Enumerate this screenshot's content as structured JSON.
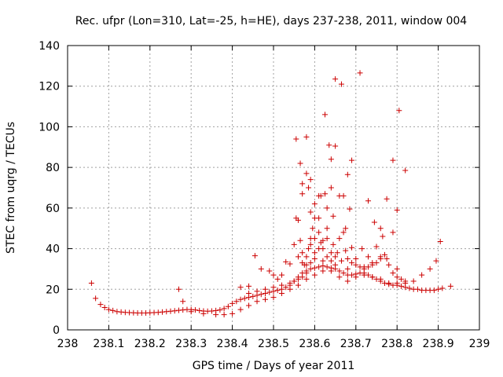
{
  "chart_data": {
    "type": "scatter",
    "title": "Rec. ufpr (Lon=310, Lat=-25, h=HE), days 237-238, 2011, window 004",
    "xlabel": "GPS time / Days of year 2011",
    "ylabel": "STEC from uqrg / TECUs",
    "xlim": [
      238,
      239
    ],
    "ylim": [
      0,
      140
    ],
    "xticks": [
      "238",
      "238.1",
      "238.2",
      "238.3",
      "238.4",
      "238.5",
      "238.6",
      "238.7",
      "238.8",
      "238.9",
      "239"
    ],
    "yticks": [
      "0",
      "20",
      "40",
      "60",
      "80",
      "100",
      "120",
      "140"
    ],
    "grid": true,
    "marker": "+",
    "color": "#cc0000",
    "series": [
      {
        "points": [
          [
            238.058,
            23
          ],
          [
            238.068,
            15.5
          ],
          [
            238.08,
            12.5
          ],
          [
            238.09,
            11
          ],
          [
            238.1,
            10
          ],
          [
            238.11,
            9.5
          ],
          [
            238.12,
            9
          ],
          [
            238.13,
            8.8
          ],
          [
            238.14,
            8.6
          ],
          [
            238.15,
            8.5
          ],
          [
            238.16,
            8.4
          ],
          [
            238.17,
            8.3
          ],
          [
            238.18,
            8.3
          ],
          [
            238.19,
            8.3
          ],
          [
            238.2,
            8.4
          ],
          [
            238.21,
            8.5
          ],
          [
            238.22,
            8.6
          ],
          [
            238.23,
            8.8
          ],
          [
            238.24,
            9
          ],
          [
            238.25,
            9.2
          ],
          [
            238.26,
            9.4
          ],
          [
            238.27,
            9.6
          ],
          [
            238.28,
            9.8
          ],
          [
            238.29,
            10
          ],
          [
            238.3,
            10
          ],
          [
            238.31,
            9.8
          ],
          [
            238.32,
            9.5
          ],
          [
            238.33,
            9.3
          ],
          [
            238.34,
            9.2
          ],
          [
            238.35,
            9.3
          ],
          [
            238.36,
            9.5
          ],
          [
            238.37,
            9.8
          ],
          [
            238.38,
            10.5
          ],
          [
            238.39,
            11.5
          ],
          [
            238.4,
            13
          ],
          [
            238.41,
            14
          ],
          [
            238.42,
            15
          ],
          [
            238.43,
            15.5
          ],
          [
            238.44,
            16
          ],
          [
            238.45,
            16.5
          ],
          [
            238.46,
            17
          ],
          [
            238.47,
            17.5
          ],
          [
            238.48,
            18
          ],
          [
            238.49,
            18.5
          ],
          [
            238.5,
            19
          ],
          [
            238.51,
            19.5
          ],
          [
            238.52,
            20
          ],
          [
            238.53,
            21
          ],
          [
            238.54,
            22
          ],
          [
            238.55,
            24
          ],
          [
            238.56,
            26
          ],
          [
            238.57,
            28
          ],
          [
            238.58,
            29
          ],
          [
            238.59,
            30
          ],
          [
            238.6,
            30.5
          ],
          [
            238.61,
            31
          ],
          [
            238.62,
            31.5
          ],
          [
            238.63,
            31
          ],
          [
            238.64,
            30.5
          ],
          [
            238.65,
            30
          ],
          [
            238.66,
            29
          ],
          [
            238.67,
            28
          ],
          [
            238.68,
            27
          ],
          [
            238.69,
            27
          ],
          [
            238.7,
            27.5
          ],
          [
            238.71,
            28
          ],
          [
            238.72,
            28
          ],
          [
            238.73,
            27
          ],
          [
            238.74,
            26
          ],
          [
            238.75,
            25
          ],
          [
            238.76,
            24
          ],
          [
            238.77,
            23
          ],
          [
            238.78,
            22.5
          ],
          [
            238.79,
            22
          ],
          [
            238.8,
            22
          ],
          [
            238.81,
            21.5
          ],
          [
            238.82,
            21
          ],
          [
            238.83,
            20.5
          ],
          [
            238.84,
            20
          ],
          [
            238.85,
            20
          ],
          [
            238.86,
            19.5
          ],
          [
            238.87,
            19.5
          ],
          [
            238.88,
            19.5
          ],
          [
            238.89,
            19.5
          ],
          [
            238.9,
            20
          ],
          [
            238.91,
            20.5
          ],
          [
            238.93,
            21.5
          ],
          [
            238.27,
            20
          ],
          [
            238.28,
            14
          ],
          [
            238.3,
            9
          ],
          [
            238.33,
            8
          ],
          [
            238.36,
            7.5
          ],
          [
            238.38,
            7.5
          ],
          [
            238.4,
            8
          ],
          [
            238.42,
            10
          ],
          [
            238.44,
            12
          ],
          [
            238.46,
            14
          ],
          [
            238.48,
            15
          ],
          [
            238.5,
            16
          ],
          [
            238.52,
            18
          ],
          [
            238.54,
            20
          ],
          [
            238.56,
            22
          ],
          [
            238.58,
            25
          ],
          [
            238.6,
            27
          ],
          [
            238.62,
            29
          ],
          [
            238.64,
            29
          ],
          [
            238.66,
            26
          ],
          [
            238.68,
            24
          ],
          [
            238.7,
            26
          ],
          [
            238.72,
            27
          ],
          [
            238.74,
            26
          ],
          [
            238.76,
            25
          ],
          [
            238.78,
            23
          ],
          [
            238.8,
            23
          ],
          [
            238.82,
            23
          ],
          [
            238.84,
            24
          ],
          [
            238.86,
            27
          ],
          [
            238.88,
            30
          ],
          [
            238.895,
            34
          ],
          [
            238.905,
            43.5
          ],
          [
            238.42,
            21
          ],
          [
            238.44,
            21.5
          ],
          [
            238.455,
            36.5
          ],
          [
            238.47,
            30
          ],
          [
            238.49,
            29
          ],
          [
            238.5,
            27
          ],
          [
            238.51,
            25
          ],
          [
            238.52,
            27
          ],
          [
            238.53,
            33.5
          ],
          [
            238.54,
            32.5
          ],
          [
            238.55,
            42
          ],
          [
            238.555,
            55
          ],
          [
            238.56,
            54
          ],
          [
            238.565,
            44
          ],
          [
            238.57,
            38
          ],
          [
            238.575,
            32
          ],
          [
            238.58,
            36
          ],
          [
            238.585,
            40
          ],
          [
            238.59,
            45
          ],
          [
            238.595,
            50
          ],
          [
            238.6,
            55
          ],
          [
            238.61,
            48
          ],
          [
            238.615,
            43
          ],
          [
            238.62,
            40
          ],
          [
            238.63,
            36
          ],
          [
            238.64,
            34
          ],
          [
            238.645,
            42
          ],
          [
            238.655,
            38
          ],
          [
            238.665,
            34
          ],
          [
            238.675,
            39
          ],
          [
            238.68,
            35
          ],
          [
            238.69,
            33
          ],
          [
            238.7,
            32
          ],
          [
            238.71,
            31
          ],
          [
            238.72,
            30
          ],
          [
            238.73,
            31
          ],
          [
            238.74,
            32
          ],
          [
            238.75,
            33
          ],
          [
            238.76,
            35
          ],
          [
            238.77,
            37
          ],
          [
            238.78,
            32
          ],
          [
            238.79,
            28
          ],
          [
            238.8,
            26
          ],
          [
            238.81,
            25
          ],
          [
            238.82,
            24
          ],
          [
            238.555,
            94
          ],
          [
            238.565,
            82
          ],
          [
            238.57,
            72
          ],
          [
            238.57,
            67
          ],
          [
            238.58,
            95
          ],
          [
            238.58,
            77
          ],
          [
            238.585,
            70
          ],
          [
            238.59,
            74
          ],
          [
            238.59,
            58
          ],
          [
            238.6,
            62
          ],
          [
            238.61,
            66
          ],
          [
            238.615,
            66
          ],
          [
            238.625,
            106
          ],
          [
            238.625,
            67
          ],
          [
            238.63,
            60
          ],
          [
            238.635,
            91
          ],
          [
            238.64,
            84
          ],
          [
            238.64,
            70
          ],
          [
            238.645,
            56
          ],
          [
            238.65,
            123.5
          ],
          [
            238.65,
            90.5
          ],
          [
            238.66,
            66
          ],
          [
            238.665,
            121
          ],
          [
            238.67,
            66
          ],
          [
            238.675,
            50
          ],
          [
            238.68,
            76.5
          ],
          [
            238.685,
            59.5
          ],
          [
            238.69,
            83.5
          ],
          [
            238.71,
            126.5
          ],
          [
            238.73,
            63.5
          ],
          [
            238.745,
            53
          ],
          [
            238.75,
            41
          ],
          [
            238.76,
            50
          ],
          [
            238.765,
            46
          ],
          [
            238.775,
            64.5
          ],
          [
            238.79,
            83.5
          ],
          [
            238.8,
            59
          ],
          [
            238.805,
            108
          ],
          [
            238.82,
            78.5
          ],
          [
            238.79,
            48
          ],
          [
            238.775,
            35
          ],
          [
            238.73,
            36
          ],
          [
            238.715,
            40
          ],
          [
            238.69,
            40.5
          ],
          [
            238.66,
            45
          ],
          [
            238.65,
            36
          ],
          [
            238.63,
            50
          ],
          [
            238.62,
            44
          ],
          [
            238.61,
            40
          ],
          [
            238.6,
            35
          ],
          [
            238.59,
            33
          ],
          [
            238.58,
            28
          ],
          [
            238.57,
            26
          ],
          [
            238.56,
            25
          ],
          [
            238.55,
            24
          ],
          [
            238.54,
            23
          ],
          [
            238.52,
            22
          ],
          [
            238.5,
            21
          ],
          [
            238.48,
            20
          ],
          [
            238.46,
            19
          ],
          [
            238.44,
            18
          ],
          [
            238.6,
            45
          ],
          [
            238.61,
            55
          ],
          [
            238.63,
            45
          ],
          [
            238.64,
            38
          ],
          [
            238.67,
            48
          ],
          [
            238.7,
            35
          ],
          [
            238.74,
            33
          ],
          [
            238.76,
            36
          ],
          [
            238.8,
            30
          ],
          [
            238.58,
            32
          ],
          [
            238.6,
            38
          ],
          [
            238.62,
            34
          ],
          [
            238.65,
            32
          ],
          [
            238.68,
            30
          ],
          [
            238.72,
            31
          ],
          [
            238.56,
            36
          ],
          [
            238.57,
            33
          ],
          [
            238.59,
            42
          ]
        ]
      }
    ]
  }
}
